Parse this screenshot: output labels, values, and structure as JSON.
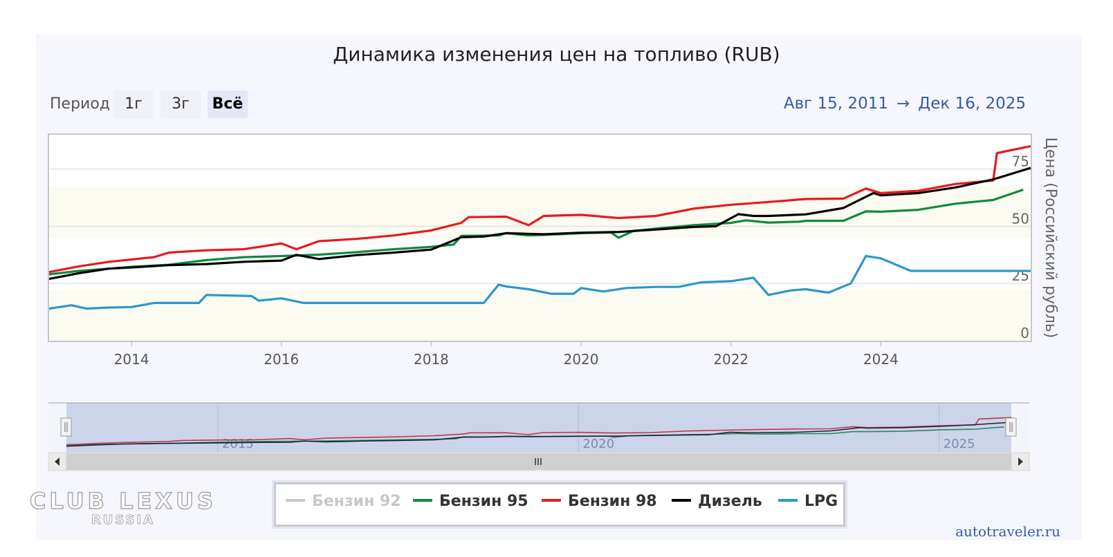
{
  "page": {
    "period_label": "Период",
    "range_buttons": [
      "1г",
      "3г",
      "Всё"
    ],
    "active_button": "Всё",
    "range_from": "Авг 15, 2011",
    "range_arrow": "→",
    "range_to": "Дек 16, 2025",
    "credit": "autotraveler.ru",
    "watermark_top": "CLUB LEXUS",
    "watermark_bottom": "RUSSIA"
  },
  "chart_data": {
    "type": "line",
    "title": "Динамика изменения цен на топливо (RUB)",
    "ylabel": "Цена (Российский рубль)",
    "xlabel": "",
    "xlim": [
      2012.9,
      2026.0
    ],
    "ylim": [
      0,
      90
    ],
    "yticks": [
      0,
      25,
      50,
      75
    ],
    "xticks": [
      2014,
      2016,
      2018,
      2020,
      2022,
      2024
    ],
    "navigator_ticks": [
      "2015",
      "2020",
      "2025"
    ],
    "legend_position": "bottom-center",
    "series": [
      {
        "name": "Бензин 92",
        "color": "#c8c8c8",
        "visible": false,
        "x": [],
        "y": []
      },
      {
        "name": "Бензин 95",
        "color": "#0f8a3c",
        "visible": true,
        "x": [
          2012.9,
          2013.3,
          2013.7,
          2014.0,
          2014.5,
          2015.0,
          2015.5,
          2016.0,
          2016.5,
          2017.0,
          2017.5,
          2018.0,
          2018.3,
          2018.4,
          2018.9,
          2019.0,
          2019.3,
          2019.7,
          2020.0,
          2020.4,
          2020.5,
          2020.7,
          2021.0,
          2021.5,
          2022.0,
          2022.2,
          2022.5,
          2022.9,
          2023.0,
          2023.5,
          2023.8,
          2024.0,
          2024.5,
          2025.0,
          2025.5,
          2025.9
        ],
        "y": [
          29,
          30.5,
          31.5,
          32.3,
          33.2,
          35.2,
          36.5,
          37,
          37.6,
          38.7,
          40,
          41,
          42,
          45.8,
          46,
          47,
          46,
          46.5,
          47,
          47.3,
          45,
          48,
          49,
          50.5,
          51.5,
          52.6,
          51.6,
          52,
          52.4,
          52.4,
          56.5,
          56.4,
          57.2,
          59.9,
          61.5,
          66
        ]
      },
      {
        "name": "Бензин 98",
        "color": "#e8191b",
        "visible": true,
        "x": [
          2012.9,
          2013.3,
          2013.7,
          2014.0,
          2014.3,
          2014.5,
          2015.0,
          2015.5,
          2016.0,
          2016.2,
          2016.5,
          2017.0,
          2017.5,
          2018.0,
          2018.4,
          2018.5,
          2019.0,
          2019.3,
          2019.5,
          2020.0,
          2020.5,
          2021.0,
          2021.5,
          2022.0,
          2022.5,
          2023.0,
          2023.5,
          2023.8,
          2024.0,
          2024.5,
          2025.0,
          2025.5,
          2025.55,
          2026.0
        ],
        "y": [
          30,
          32.5,
          34.5,
          35.5,
          36.5,
          38.5,
          39.5,
          40,
          42.5,
          40,
          43.5,
          44.5,
          46,
          48.2,
          51.5,
          54,
          54.2,
          50.5,
          54.5,
          55,
          53.6,
          54.5,
          57.7,
          59.4,
          60.6,
          61.9,
          62.1,
          66.5,
          64.5,
          65.5,
          68.5,
          70,
          82,
          85
        ]
      },
      {
        "name": "Дизель",
        "color": "#000000",
        "visible": true,
        "x": [
          2012.9,
          2013.3,
          2013.7,
          2014.0,
          2014.5,
          2015.0,
          2015.5,
          2016.0,
          2016.2,
          2016.5,
          2017.0,
          2017.5,
          2018.0,
          2018.4,
          2018.7,
          2019.0,
          2019.5,
          2020.0,
          2020.5,
          2021.0,
          2021.5,
          2021.8,
          2022.1,
          2022.3,
          2022.5,
          2023.0,
          2023.5,
          2023.9,
          2024.0,
          2024.5,
          2025.0,
          2025.5,
          2026.0
        ],
        "y": [
          27,
          29.5,
          31.5,
          32,
          33,
          33.5,
          34.5,
          35,
          37.5,
          35.7,
          37.4,
          38.5,
          39.8,
          45.2,
          45.5,
          47,
          46.5,
          47.2,
          47.5,
          48.6,
          49.7,
          50,
          55.3,
          54.5,
          54.5,
          55.2,
          58,
          64.5,
          63.5,
          64.5,
          67,
          70.5,
          75.5
        ]
      },
      {
        "name": "LPG",
        "color": "#2a97cc",
        "visible": true,
        "x": [
          2012.9,
          2013.2,
          2013.4,
          2013.7,
          2014.0,
          2014.3,
          2014.9,
          2015.0,
          2015.6,
          2015.7,
          2016.0,
          2016.3,
          2017.0,
          2018.0,
          2018.7,
          2018.9,
          2019.0,
          2019.3,
          2019.6,
          2019.9,
          2020.0,
          2020.3,
          2020.6,
          2021.0,
          2021.3,
          2021.6,
          2022.0,
          2022.3,
          2022.5,
          2022.8,
          2023.0,
          2023.3,
          2023.6,
          2023.8,
          2024.0,
          2024.4,
          2025.0,
          2026.0
        ],
        "y": [
          14,
          15.5,
          14,
          14.5,
          14.7,
          16.5,
          16.5,
          20,
          19.5,
          17.5,
          18.5,
          16.5,
          16.5,
          16.5,
          16.5,
          24.5,
          23.7,
          22.5,
          20.5,
          20.5,
          23,
          21.5,
          23,
          23.5,
          23.5,
          25.5,
          26,
          27.5,
          20,
          22,
          22.5,
          21,
          25,
          37,
          36,
          30.5,
          30.5,
          30.5
        ]
      }
    ]
  }
}
